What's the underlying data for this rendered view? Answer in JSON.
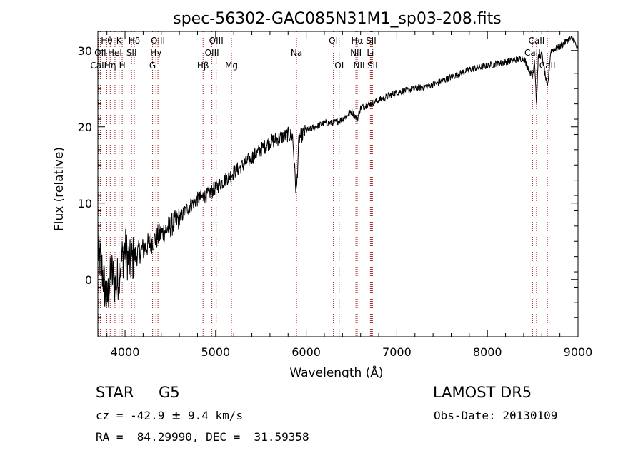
{
  "chart_data": {
    "type": "line",
    "title": "spec-56302-GAC085N31M1_sp03-208.fits",
    "xlabel": "Wavelength (Å)",
    "ylabel": "Flux (relative)",
    "xlim": [
      3700,
      9000
    ],
    "ylim": [
      -7.5,
      32.5
    ],
    "xticks": [
      4000,
      5000,
      6000,
      7000,
      8000,
      9000
    ],
    "yticks": [
      0,
      10,
      20,
      30
    ],
    "grid": false,
    "line_color": "#000000",
    "marker_color": "#9b1b1b",
    "spectrum": {
      "x": [
        3700,
        3750,
        3800,
        3850,
        3900,
        3950,
        4000,
        4050,
        4100,
        4200,
        4300,
        4400,
        4500,
        4600,
        4700,
        4800,
        4900,
        5000,
        5100,
        5200,
        5300,
        5400,
        5500,
        5600,
        5700,
        5800,
        5850,
        5890,
        5920,
        6000,
        6100,
        6200,
        6300,
        6400,
        6500,
        6563,
        6600,
        6700,
        6800,
        6900,
        7000,
        7200,
        7400,
        7600,
        7800,
        8000,
        8200,
        8400,
        8498,
        8520,
        8542,
        8560,
        8600,
        8662,
        8700,
        8800,
        8900,
        8950,
        9000
      ],
      "y": [
        4,
        1,
        -3,
        1,
        -1,
        2,
        4,
        2,
        3,
        4,
        5,
        6,
        7,
        8,
        9.5,
        10.5,
        11,
        12,
        13,
        14,
        15,
        16,
        17,
        18,
        18.5,
        19,
        18.8,
        11,
        18.5,
        19.5,
        20,
        20.5,
        20.5,
        21,
        22,
        21,
        22.5,
        23,
        23.5,
        24,
        24.5,
        25,
        25.5,
        26.5,
        27.5,
        28,
        28.5,
        29,
        26.5,
        29,
        23,
        29,
        29.5,
        25,
        30,
        30.5,
        31.5,
        31.5,
        30
      ]
    },
    "lines": [
      {
        "label": "Hθ",
        "wl": 3798,
        "row": 0
      },
      {
        "label": "OII",
        "wl": 3727,
        "row": 1
      },
      {
        "label": "CaII",
        "wl": 3706,
        "row": 2
      },
      {
        "label": "Hη",
        "wl": 3836,
        "row": 2
      },
      {
        "label": "HeI",
        "wl": 3889,
        "row": 1
      },
      {
        "label": "K",
        "wl": 3934,
        "row": 0
      },
      {
        "label": "H",
        "wl": 3969,
        "row": 2
      },
      {
        "label": "SII",
        "wl": 4072,
        "row": 1
      },
      {
        "label": "Hδ",
        "wl": 4102,
        "row": 0
      },
      {
        "label": "G",
        "wl": 4304,
        "row": 2
      },
      {
        "label": "Hγ",
        "wl": 4341,
        "row": 1
      },
      {
        "label": "OIII",
        "wl": 4363,
        "row": 0
      },
      {
        "label": "Hβ",
        "wl": 4861,
        "row": 2
      },
      {
        "label": "OIII",
        "wl": 4959,
        "row": 1
      },
      {
        "label": "OIII",
        "wl": 5007,
        "row": 0
      },
      {
        "label": "Mg",
        "wl": 5175,
        "row": 2
      },
      {
        "label": "Na",
        "wl": 5893,
        "row": 1
      },
      {
        "label": "OI",
        "wl": 6300,
        "row": 0
      },
      {
        "label": "OI",
        "wl": 6364,
        "row": 2
      },
      {
        "label": "NII",
        "wl": 6548,
        "row": 1
      },
      {
        "label": "NII",
        "wl": 6583,
        "row": 2
      },
      {
        "label": "Hα",
        "wl": 6563,
        "row": 0
      },
      {
        "label": "Li",
        "wl": 6708,
        "row": 1
      },
      {
        "label": "SII",
        "wl": 6716,
        "row": 0
      },
      {
        "label": "SII",
        "wl": 6731,
        "row": 2
      },
      {
        "label": "CaII",
        "wl": 8498,
        "row": 1
      },
      {
        "label": "CaII",
        "wl": 8542,
        "row": 0
      },
      {
        "label": "CaII",
        "wl": 8662,
        "row": 2
      }
    ]
  },
  "info": {
    "obj_class": "STAR",
    "obj_subclass": "G5",
    "survey": "LAMOST DR5",
    "cz_prefix": "cz = -42.9 ",
    "cz_pm": "±",
    "cz_suffix": " 9.4 km/s",
    "obs_date": "Obs-Date: 20130109",
    "radec": "RA =  84.29990, DEC =  31.59358"
  }
}
